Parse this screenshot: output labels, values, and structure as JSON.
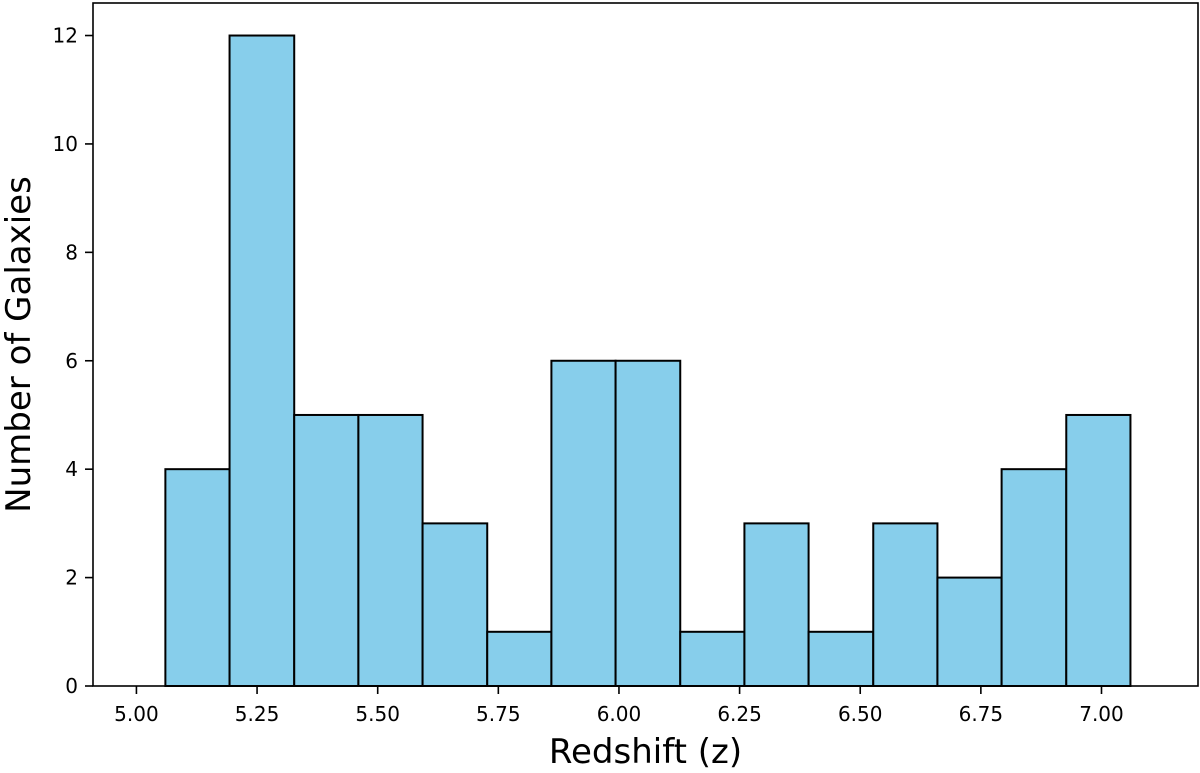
{
  "chart_data": {
    "type": "bar",
    "subtype": "histogram",
    "title": "",
    "xlabel": "Redshift (z)",
    "ylabel": "Number of Galaxies",
    "xlim": [
      4.91,
      7.2
    ],
    "ylim": [
      0,
      12.6
    ],
    "bin_edges": [
      5.06,
      5.193,
      5.327,
      5.46,
      5.593,
      5.727,
      5.86,
      5.993,
      6.127,
      6.26,
      6.393,
      6.527,
      6.66,
      6.793,
      6.927,
      7.06
    ],
    "values": [
      4,
      12,
      5,
      5,
      3,
      1,
      6,
      6,
      1,
      3,
      1,
      3,
      2,
      4,
      5
    ],
    "x_ticks": [
      5.0,
      5.25,
      5.5,
      5.75,
      6.0,
      6.25,
      6.5,
      6.75,
      7.0
    ],
    "x_tick_labels": [
      "5.00",
      "5.25",
      "5.50",
      "5.75",
      "6.00",
      "6.25",
      "6.50",
      "6.75",
      "7.00"
    ],
    "y_ticks": [
      0,
      2,
      4,
      6,
      8,
      10,
      12
    ],
    "y_tick_labels": [
      "0",
      "2",
      "4",
      "6",
      "8",
      "10",
      "12"
    ],
    "grid": false,
    "legend": "none",
    "bar_color": "#87ceeb",
    "edge_color": "#000000"
  }
}
